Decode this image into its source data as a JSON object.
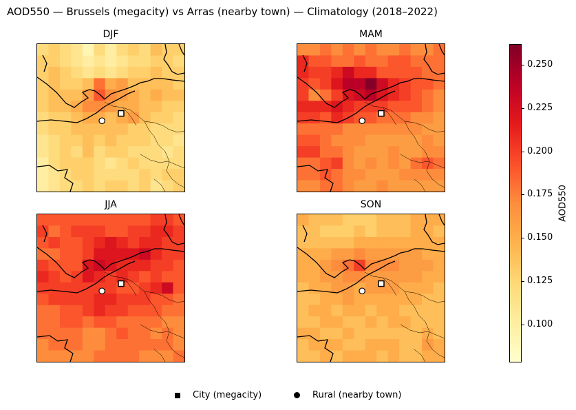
{
  "figure": {
    "title": "AOD550 — Brussels (megacity) vs Arras (nearby town) — Climatology (2018–2022)"
  },
  "colors": {
    "colormap": "YlOrRd",
    "coastline": "#000000",
    "border": "#000000",
    "city_marker_fill": "#ffffff",
    "rural_marker_fill": "#ffffff"
  },
  "chart_data": {
    "type": "heatmap",
    "variable": "AOD550",
    "grid": {
      "rows": 13,
      "cols": 13
    },
    "colorbar": {
      "label": "AOD550",
      "vmin": 0.078,
      "vmax": 0.262,
      "ticks": [
        0.1,
        0.125,
        0.15,
        0.175,
        0.2,
        0.225,
        0.25
      ],
      "tick_labels": [
        "0.100",
        "0.125",
        "0.150",
        "0.175",
        "0.200",
        "0.225",
        "0.250"
      ]
    },
    "panels": [
      {
        "title": "DJF",
        "values": [
          [
            0.12,
            0.13,
            0.12,
            0.11,
            0.09,
            0.12,
            0.1,
            0.12,
            0.13,
            0.12,
            0.14,
            0.13,
            0.13
          ],
          [
            0.13,
            0.13,
            0.12,
            0.11,
            0.1,
            0.11,
            0.1,
            0.11,
            0.12,
            0.12,
            0.13,
            0.13,
            0.12
          ],
          [
            0.13,
            0.14,
            0.13,
            0.12,
            0.11,
            0.12,
            0.11,
            0.12,
            0.13,
            0.13,
            0.14,
            0.13,
            0.13
          ],
          [
            0.13,
            0.14,
            0.13,
            0.13,
            0.14,
            0.18,
            0.15,
            0.16,
            0.14,
            0.14,
            0.14,
            0.14,
            0.13
          ],
          [
            0.13,
            0.14,
            0.14,
            0.14,
            0.16,
            0.19,
            0.17,
            0.16,
            0.15,
            0.14,
            0.15,
            0.14,
            0.14
          ],
          [
            0.13,
            0.14,
            0.14,
            0.15,
            0.17,
            0.17,
            0.16,
            0.15,
            0.15,
            0.14,
            0.14,
            0.13,
            0.13
          ],
          [
            0.12,
            0.13,
            0.13,
            0.14,
            0.15,
            0.15,
            0.14,
            0.15,
            0.16,
            0.14,
            0.13,
            0.13,
            0.12
          ],
          [
            0.12,
            0.13,
            0.13,
            0.14,
            0.14,
            0.14,
            0.14,
            0.14,
            0.13,
            0.13,
            0.12,
            0.12,
            0.12
          ],
          [
            0.11,
            0.12,
            0.13,
            0.13,
            0.14,
            0.13,
            0.14,
            0.13,
            0.13,
            0.13,
            0.12,
            0.12,
            0.11
          ],
          [
            0.11,
            0.12,
            0.13,
            0.12,
            0.14,
            0.12,
            0.13,
            0.13,
            0.12,
            0.12,
            0.12,
            0.11,
            0.12
          ],
          [
            0.1,
            0.12,
            0.13,
            0.13,
            0.13,
            0.12,
            0.11,
            0.12,
            0.13,
            0.12,
            0.12,
            0.12,
            0.12
          ],
          [
            0.1,
            0.11,
            0.12,
            0.13,
            0.13,
            0.12,
            0.12,
            0.12,
            0.12,
            0.13,
            0.12,
            0.13,
            0.13
          ],
          [
            0.1,
            0.11,
            0.12,
            0.12,
            0.13,
            0.12,
            0.13,
            0.13,
            0.12,
            0.13,
            0.11,
            0.12,
            0.13
          ]
        ]
      },
      {
        "title": "MAM",
        "values": [
          [
            0.17,
            0.17,
            0.18,
            0.17,
            0.18,
            0.17,
            0.18,
            0.17,
            0.17,
            0.18,
            0.17,
            0.17,
            0.18
          ],
          [
            0.21,
            0.19,
            0.19,
            0.18,
            0.18,
            0.19,
            0.18,
            0.18,
            0.19,
            0.19,
            0.18,
            0.18,
            0.18
          ],
          [
            0.21,
            0.2,
            0.2,
            0.21,
            0.23,
            0.21,
            0.21,
            0.19,
            0.19,
            0.19,
            0.19,
            0.18,
            0.18
          ],
          [
            0.2,
            0.19,
            0.2,
            0.22,
            0.24,
            0.24,
            0.26,
            0.23,
            0.21,
            0.2,
            0.19,
            0.19,
            0.18
          ],
          [
            0.2,
            0.17,
            0.18,
            0.2,
            0.22,
            0.23,
            0.24,
            0.22,
            0.21,
            0.2,
            0.19,
            0.18,
            0.17
          ],
          [
            0.21,
            0.21,
            0.21,
            0.22,
            0.21,
            0.2,
            0.2,
            0.2,
            0.19,
            0.19,
            0.19,
            0.18,
            0.17
          ],
          [
            0.2,
            0.2,
            0.19,
            0.21,
            0.2,
            0.19,
            0.19,
            0.18,
            0.18,
            0.18,
            0.17,
            0.17,
            0.16
          ],
          [
            0.18,
            0.18,
            0.18,
            0.18,
            0.17,
            0.17,
            0.17,
            0.17,
            0.17,
            0.17,
            0.17,
            0.16,
            0.16
          ],
          [
            0.19,
            0.19,
            0.18,
            0.17,
            0.17,
            0.17,
            0.16,
            0.16,
            0.16,
            0.16,
            0.16,
            0.17,
            0.16
          ],
          [
            0.2,
            0.2,
            0.18,
            0.18,
            0.17,
            0.16,
            0.16,
            0.16,
            0.17,
            0.16,
            0.16,
            0.17,
            0.17
          ],
          [
            0.18,
            0.18,
            0.19,
            0.2,
            0.17,
            0.16,
            0.17,
            0.16,
            0.17,
            0.16,
            0.18,
            0.19,
            0.18
          ],
          [
            0.18,
            0.18,
            0.19,
            0.18,
            0.17,
            0.17,
            0.16,
            0.16,
            0.16,
            0.17,
            0.17,
            0.17,
            0.17
          ],
          [
            0.17,
            0.17,
            0.18,
            0.18,
            0.17,
            0.16,
            0.16,
            0.17,
            0.16,
            0.16,
            0.16,
            0.16,
            0.16
          ]
        ]
      },
      {
        "title": "JJA",
        "values": [
          [
            0.19,
            0.19,
            0.19,
            0.19,
            0.19,
            0.19,
            0.19,
            0.19,
            0.19,
            0.19,
            0.2,
            0.2,
            0.19
          ],
          [
            0.2,
            0.18,
            0.19,
            0.2,
            0.2,
            0.2,
            0.19,
            0.19,
            0.2,
            0.2,
            0.21,
            0.21,
            0.2
          ],
          [
            0.19,
            0.2,
            0.19,
            0.19,
            0.2,
            0.21,
            0.22,
            0.21,
            0.2,
            0.21,
            0.21,
            0.2,
            0.2
          ],
          [
            0.18,
            0.18,
            0.19,
            0.19,
            0.2,
            0.22,
            0.22,
            0.22,
            0.22,
            0.23,
            0.21,
            0.2,
            0.2
          ],
          [
            0.2,
            0.19,
            0.19,
            0.19,
            0.22,
            0.23,
            0.22,
            0.21,
            0.21,
            0.21,
            0.2,
            0.2,
            0.19
          ],
          [
            0.21,
            0.2,
            0.19,
            0.2,
            0.22,
            0.21,
            0.2,
            0.21,
            0.2,
            0.19,
            0.2,
            0.19,
            0.19
          ],
          [
            0.2,
            0.2,
            0.2,
            0.2,
            0.2,
            0.2,
            0.2,
            0.19,
            0.19,
            0.2,
            0.21,
            0.23,
            0.19
          ],
          [
            0.19,
            0.2,
            0.2,
            0.2,
            0.2,
            0.21,
            0.21,
            0.2,
            0.2,
            0.2,
            0.19,
            0.19,
            0.18
          ],
          [
            0.18,
            0.18,
            0.19,
            0.19,
            0.2,
            0.21,
            0.2,
            0.2,
            0.19,
            0.19,
            0.19,
            0.18,
            0.18
          ],
          [
            0.18,
            0.18,
            0.19,
            0.19,
            0.18,
            0.19,
            0.19,
            0.18,
            0.18,
            0.18,
            0.18,
            0.17,
            0.17
          ],
          [
            0.18,
            0.18,
            0.18,
            0.18,
            0.17,
            0.17,
            0.18,
            0.19,
            0.18,
            0.18,
            0.17,
            0.18,
            0.17
          ],
          [
            0.17,
            0.18,
            0.18,
            0.18,
            0.17,
            0.17,
            0.18,
            0.18,
            0.18,
            0.18,
            0.18,
            0.18,
            0.17
          ],
          [
            0.17,
            0.17,
            0.17,
            0.17,
            0.17,
            0.18,
            0.18,
            0.18,
            0.18,
            0.17,
            0.17,
            0.17,
            0.18
          ]
        ]
      },
      {
        "title": "SON",
        "values": [
          [
            0.15,
            0.14,
            0.14,
            0.14,
            0.13,
            0.13,
            0.13,
            0.14,
            0.14,
            0.14,
            0.15,
            0.15,
            0.15
          ],
          [
            0.14,
            0.14,
            0.13,
            0.13,
            0.13,
            0.14,
            0.13,
            0.14,
            0.14,
            0.14,
            0.15,
            0.15,
            0.14
          ],
          [
            0.14,
            0.14,
            0.14,
            0.14,
            0.14,
            0.15,
            0.15,
            0.15,
            0.15,
            0.15,
            0.15,
            0.15,
            0.15
          ],
          [
            0.15,
            0.15,
            0.15,
            0.16,
            0.16,
            0.17,
            0.16,
            0.16,
            0.16,
            0.16,
            0.16,
            0.15,
            0.15
          ],
          [
            0.15,
            0.15,
            0.16,
            0.17,
            0.18,
            0.2,
            0.17,
            0.17,
            0.17,
            0.16,
            0.16,
            0.16,
            0.15
          ],
          [
            0.15,
            0.15,
            0.16,
            0.16,
            0.17,
            0.17,
            0.16,
            0.16,
            0.16,
            0.16,
            0.16,
            0.15,
            0.15
          ],
          [
            0.14,
            0.15,
            0.15,
            0.16,
            0.16,
            0.15,
            0.16,
            0.16,
            0.16,
            0.15,
            0.15,
            0.15,
            0.14
          ],
          [
            0.14,
            0.14,
            0.15,
            0.15,
            0.16,
            0.15,
            0.15,
            0.15,
            0.15,
            0.15,
            0.15,
            0.14,
            0.14
          ],
          [
            0.14,
            0.15,
            0.15,
            0.14,
            0.15,
            0.15,
            0.14,
            0.15,
            0.15,
            0.14,
            0.14,
            0.14,
            0.14
          ],
          [
            0.14,
            0.14,
            0.15,
            0.15,
            0.14,
            0.14,
            0.15,
            0.14,
            0.15,
            0.15,
            0.14,
            0.14,
            0.14
          ],
          [
            0.15,
            0.15,
            0.14,
            0.14,
            0.15,
            0.14,
            0.14,
            0.14,
            0.14,
            0.14,
            0.14,
            0.15,
            0.14
          ],
          [
            0.14,
            0.15,
            0.15,
            0.15,
            0.14,
            0.14,
            0.15,
            0.15,
            0.15,
            0.14,
            0.14,
            0.16,
            0.15
          ],
          [
            0.14,
            0.14,
            0.15,
            0.14,
            0.15,
            0.15,
            0.15,
            0.14,
            0.15,
            0.14,
            0.14,
            0.15,
            0.15
          ]
        ]
      }
    ],
    "markers": [
      {
        "label": "City (megacity)",
        "symbol": "square"
      },
      {
        "label": "Rural (nearby town)",
        "symbol": "circle"
      }
    ]
  },
  "legend": {
    "city_label": "City (megacity)",
    "rural_label": "Rural (nearby town)"
  }
}
